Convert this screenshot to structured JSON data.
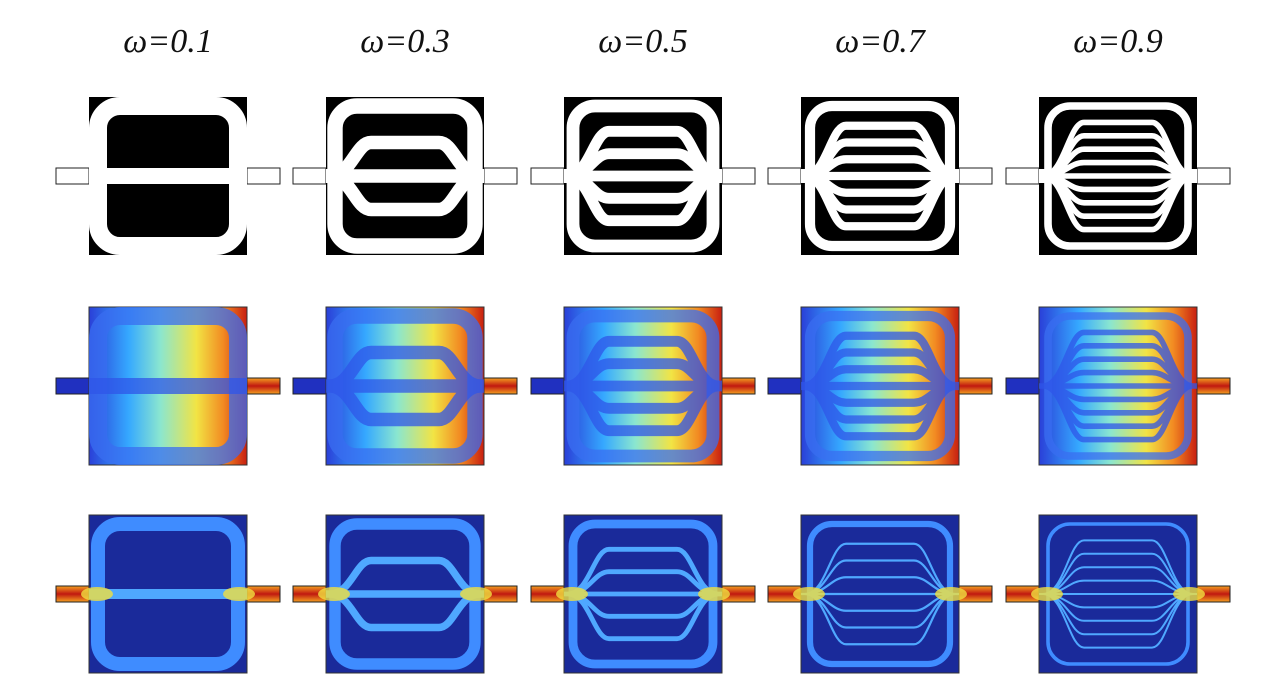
{
  "columns": [
    {
      "label": "ω=0.1"
    },
    {
      "label": "ω=0.3"
    },
    {
      "label": "ω=0.5"
    },
    {
      "label": "ω=0.7"
    },
    {
      "label": "ω=0.9"
    }
  ]
}
